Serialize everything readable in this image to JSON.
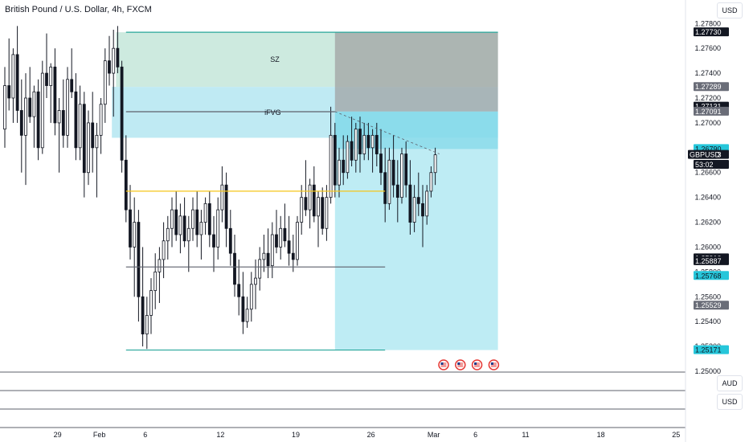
{
  "header": {
    "title": "British Pound / U.S. Dollar, 4h, FXCM",
    "currency_top": "USD",
    "pane_currency_1": "AUD",
    "pane_currency_2": "USD"
  },
  "chart_data": {
    "type": "candlestick",
    "symbol": "GBPUSD",
    "ylim": [
      1.25,
      1.2786
    ],
    "price_ticks": [
      "1.27800",
      "1.27600",
      "1.27400",
      "1.27200",
      "1.27000",
      "1.26800",
      "1.26600",
      "1.26400",
      "1.26200",
      "1.26000",
      "1.25800",
      "1.25600",
      "1.25400",
      "1.25200",
      "1.25000"
    ],
    "x_ticks": [
      {
        "label": "29",
        "idx": 13
      },
      {
        "label": "Feb",
        "idx": 23
      },
      {
        "label": "6",
        "idx": 34
      },
      {
        "label": "12",
        "idx": 52
      },
      {
        "label": "19",
        "idx": 70
      },
      {
        "label": "26",
        "idx": 88
      },
      {
        "label": "Mar",
        "idx": 103
      },
      {
        "label": "6",
        "idx": 113
      },
      {
        "label": "11",
        "idx": 125
      },
      {
        "label": "18",
        "idx": 143
      },
      {
        "label": "25",
        "idx": 161
      }
    ],
    "price_tags": [
      {
        "text": "1.27730",
        "value": 1.2773,
        "style": "dark"
      },
      {
        "text": "1.27289",
        "value": 1.27289,
        "style": "gray"
      },
      {
        "text": "1.27131",
        "value": 1.27131,
        "style": "dark"
      },
      {
        "text": "1.27091",
        "value": 1.27091,
        "style": "gray"
      },
      {
        "text": "1.26790",
        "value": 1.2679,
        "style": "teal"
      },
      {
        "text": "1.26743",
        "value": 1.26743,
        "style": "dark"
      },
      {
        "text": "53:02",
        "value": 1.26663,
        "style": "dark"
      },
      {
        "text": "1.25910",
        "value": 1.2591,
        "style": "dark"
      },
      {
        "text": "1.25887",
        "value": 1.25887,
        "style": "dark"
      },
      {
        "text": "1.25768",
        "value": 1.25768,
        "style": "teal"
      },
      {
        "text": "1.25529",
        "value": 1.25529,
        "style": "gray"
      },
      {
        "text": "1.25171",
        "value": 1.25171,
        "style": "teal"
      }
    ],
    "symbol_tag": {
      "text": "GBPUSD",
      "value": 1.26743
    },
    "zones": [
      {
        "label": "SZ",
        "from_idx": 27,
        "to_idx": 118,
        "top": 1.2773,
        "bottom": 1.2729,
        "color": "#c8e8dc"
      },
      {
        "label": "iFVG",
        "from_idx": 26,
        "to_idx": 118,
        "top": 1.2729,
        "bottom": 1.2688,
        "color": "#b8e8f2"
      }
    ],
    "position": {
      "from_idx": 79,
      "to_idx": 118,
      "stop_top": 1.2773,
      "stop_bottom": 1.27091,
      "target_top": 1.2679,
      "target_bottom": 1.25171,
      "entry": 1.2679
    },
    "levels": [
      {
        "name": "yellow-level",
        "value": 1.2645,
        "from_idx": 29,
        "to_idx": 91,
        "color": "#f5c518"
      },
      {
        "name": "gray-level",
        "value": 1.2584,
        "from_idx": 29,
        "to_idx": 91,
        "color": "#5d606b"
      },
      {
        "name": "top-level",
        "value": 1.2773,
        "from_idx": 29,
        "to_idx": 118,
        "color": "#26a69a"
      },
      {
        "name": "bottom-level",
        "value": 1.25171,
        "from_idx": 29,
        "to_idx": 91,
        "color": "#26a69a"
      },
      {
        "name": "ifvg-mid",
        "value": 1.2709,
        "from_idx": 29,
        "to_idx": 79,
        "color": "#5d606b"
      }
    ],
    "candles": [
      [
        1.2695,
        1.2745,
        1.268,
        1.273
      ],
      [
        1.273,
        1.2768,
        1.271,
        1.272
      ],
      [
        1.272,
        1.276,
        1.27,
        1.2755
      ],
      [
        1.2755,
        1.2778,
        1.27,
        1.271
      ],
      [
        1.271,
        1.2735,
        1.266,
        1.269
      ],
      [
        1.269,
        1.274,
        1.265,
        1.272
      ],
      [
        1.272,
        1.2745,
        1.27,
        1.2705
      ],
      [
        1.2705,
        1.273,
        1.268,
        1.2725
      ],
      [
        1.2725,
        1.2735,
        1.267,
        1.268
      ],
      [
        1.268,
        1.275,
        1.2675,
        1.274
      ],
      [
        1.274,
        1.2772,
        1.272,
        1.273
      ],
      [
        1.273,
        1.2748,
        1.27,
        1.2745
      ],
      [
        1.2745,
        1.276,
        1.269,
        1.27
      ],
      [
        1.27,
        1.272,
        1.266,
        1.271
      ],
      [
        1.271,
        1.2735,
        1.268,
        1.269
      ],
      [
        1.269,
        1.2745,
        1.268,
        1.2735
      ],
      [
        1.2735,
        1.276,
        1.272,
        1.2725
      ],
      [
        1.2725,
        1.274,
        1.267,
        1.268
      ],
      [
        1.268,
        1.273,
        1.267,
        1.2715
      ],
      [
        1.2715,
        1.2725,
        1.264,
        1.266
      ],
      [
        1.266,
        1.271,
        1.265,
        1.27
      ],
      [
        1.27,
        1.2725,
        1.266,
        1.268
      ],
      [
        1.268,
        1.27,
        1.264,
        1.269
      ],
      [
        1.269,
        1.272,
        1.2675,
        1.2715
      ],
      [
        1.2715,
        1.276,
        1.27,
        1.275
      ],
      [
        1.275,
        1.277,
        1.273,
        1.274
      ],
      [
        1.274,
        1.2775,
        1.2705,
        1.276
      ],
      [
        1.276,
        1.2778,
        1.274,
        1.2745
      ],
      [
        1.2745,
        1.275,
        1.266,
        1.267
      ],
      [
        1.267,
        1.269,
        1.262,
        1.263
      ],
      [
        1.263,
        1.265,
        1.259,
        1.26
      ],
      [
        1.26,
        1.264,
        1.256,
        1.262
      ],
      [
        1.262,
        1.263,
        1.254,
        1.256
      ],
      [
        1.256,
        1.26,
        1.252,
        1.253
      ],
      [
        1.253,
        1.256,
        1.2518,
        1.2545
      ],
      [
        1.2545,
        1.2575,
        1.253,
        1.2565
      ],
      [
        1.2565,
        1.2595,
        1.255,
        1.258
      ],
      [
        1.258,
        1.26,
        1.2555,
        1.259
      ],
      [
        1.259,
        1.262,
        1.2575,
        1.2605
      ],
      [
        1.2605,
        1.2625,
        1.259,
        1.2615
      ],
      [
        1.2615,
        1.264,
        1.26,
        1.263
      ],
      [
        1.263,
        1.2645,
        1.2605,
        1.261
      ],
      [
        1.261,
        1.2635,
        1.2595,
        1.2625
      ],
      [
        1.2625,
        1.264,
        1.26,
        1.2605
      ],
      [
        1.2605,
        1.2625,
        1.258,
        1.2615
      ],
      [
        1.2615,
        1.264,
        1.2605,
        1.263
      ],
      [
        1.263,
        1.2645,
        1.26,
        1.261
      ],
      [
        1.261,
        1.263,
        1.259,
        1.262
      ],
      [
        1.262,
        1.264,
        1.261,
        1.2635
      ],
      [
        1.2635,
        1.2645,
        1.26,
        1.261
      ],
      [
        1.261,
        1.2625,
        1.258,
        1.26
      ],
      [
        1.26,
        1.264,
        1.259,
        1.263
      ],
      [
        1.263,
        1.2665,
        1.262,
        1.265
      ],
      [
        1.265,
        1.266,
        1.26,
        1.2615
      ],
      [
        1.2615,
        1.263,
        1.2585,
        1.2595
      ],
      [
        1.2595,
        1.261,
        1.256,
        1.257
      ],
      [
        1.257,
        1.259,
        1.2545,
        1.256
      ],
      [
        1.256,
        1.258,
        1.253,
        1.254
      ],
      [
        1.254,
        1.256,
        1.2535,
        1.255
      ],
      [
        1.255,
        1.258,
        1.254,
        1.257
      ],
      [
        1.257,
        1.259,
        1.255,
        1.2575
      ],
      [
        1.2575,
        1.26,
        1.2565,
        1.259
      ],
      [
        1.259,
        1.261,
        1.258,
        1.2595
      ],
      [
        1.2595,
        1.2615,
        1.2575,
        1.2585
      ],
      [
        1.2585,
        1.262,
        1.2575,
        1.261
      ],
      [
        1.261,
        1.263,
        1.2595,
        1.26
      ],
      [
        1.26,
        1.2625,
        1.259,
        1.2615
      ],
      [
        1.2615,
        1.2635,
        1.26,
        1.2605
      ],
      [
        1.2605,
        1.2625,
        1.2585,
        1.2595
      ],
      [
        1.2595,
        1.261,
        1.258,
        1.259
      ],
      [
        1.259,
        1.2625,
        1.2585,
        1.262
      ],
      [
        1.262,
        1.265,
        1.261,
        1.264
      ],
      [
        1.264,
        1.267,
        1.2625,
        1.263
      ],
      [
        1.263,
        1.2655,
        1.2615,
        1.265
      ],
      [
        1.265,
        1.2665,
        1.262,
        1.2625
      ],
      [
        1.2625,
        1.2645,
        1.26,
        1.264
      ],
      [
        1.264,
        1.2648,
        1.261,
        1.2615
      ],
      [
        1.2615,
        1.265,
        1.2605,
        1.264
      ],
      [
        1.264,
        1.2713,
        1.2635,
        1.269
      ],
      [
        1.269,
        1.27,
        1.264,
        1.265
      ],
      [
        1.265,
        1.268,
        1.264,
        1.267
      ],
      [
        1.267,
        1.269,
        1.265,
        1.266
      ],
      [
        1.266,
        1.269,
        1.2655,
        1.2685
      ],
      [
        1.2685,
        1.2705,
        1.2665,
        1.267
      ],
      [
        1.267,
        1.27,
        1.266,
        1.2695
      ],
      [
        1.2695,
        1.2705,
        1.266,
        1.2675
      ],
      [
        1.2675,
        1.27,
        1.267,
        1.269
      ],
      [
        1.269,
        1.27,
        1.267,
        1.268
      ],
      [
        1.268,
        1.2695,
        1.266,
        1.269
      ],
      [
        1.269,
        1.27,
        1.2665,
        1.2675
      ],
      [
        1.2675,
        1.2695,
        1.265,
        1.266
      ],
      [
        1.266,
        1.268,
        1.262,
        1.2635
      ],
      [
        1.2635,
        1.268,
        1.263,
        1.267
      ],
      [
        1.267,
        1.269,
        1.264,
        1.265
      ],
      [
        1.265,
        1.267,
        1.262,
        1.264
      ],
      [
        1.264,
        1.268,
        1.2635,
        1.2675
      ],
      [
        1.2675,
        1.2685,
        1.264,
        1.265
      ],
      [
        1.265,
        1.267,
        1.261,
        1.262
      ],
      [
        1.262,
        1.265,
        1.2612,
        1.264
      ],
      [
        1.264,
        1.266,
        1.2625,
        1.2635
      ],
      [
        1.2635,
        1.265,
        1.26,
        1.2625
      ],
      [
        1.2625,
        1.265,
        1.2618,
        1.2645
      ],
      [
        1.2645,
        1.2665,
        1.264,
        1.266
      ],
      [
        1.266,
        1.268,
        1.265,
        1.26743
      ]
    ]
  },
  "events": [
    {
      "name": "event-flag-1",
      "idx": 105
    },
    {
      "name": "event-flag-2",
      "idx": 109
    },
    {
      "name": "event-flag-3",
      "idx": 113
    },
    {
      "name": "event-flag-4",
      "idx": 117
    }
  ]
}
